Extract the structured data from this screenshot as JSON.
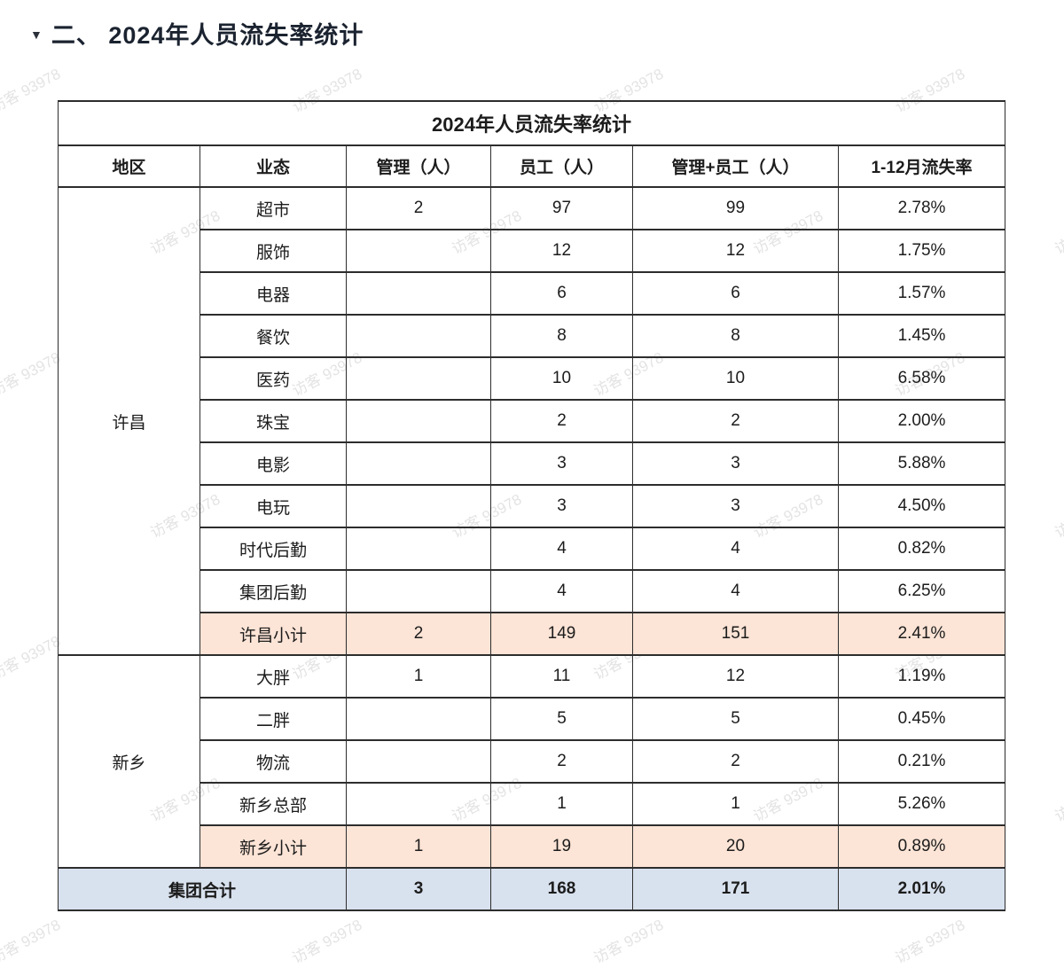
{
  "heading": {
    "collapse_icon": "▼",
    "text": "二、 2024年人员流失率统计"
  },
  "watermark": {
    "text": "访客 93978"
  },
  "table": {
    "title": "2024年人员流失率统计",
    "columns": [
      "地区",
      "业态",
      "管理（人）",
      "员工（人）",
      "管理+员工（人）",
      "1-12月流失率"
    ],
    "regions": [
      {
        "name": "许昌",
        "rows": [
          {
            "label": "超市",
            "mgmt": "2",
            "staff": "97",
            "total": "99",
            "rate": "2.78%"
          },
          {
            "label": "服饰",
            "mgmt": "",
            "staff": "12",
            "total": "12",
            "rate": "1.75%"
          },
          {
            "label": "电器",
            "mgmt": "",
            "staff": "6",
            "total": "6",
            "rate": "1.57%"
          },
          {
            "label": "餐饮",
            "mgmt": "",
            "staff": "8",
            "total": "8",
            "rate": "1.45%"
          },
          {
            "label": "医药",
            "mgmt": "",
            "staff": "10",
            "total": "10",
            "rate": "6.58%"
          },
          {
            "label": "珠宝",
            "mgmt": "",
            "staff": "2",
            "total": "2",
            "rate": "2.00%"
          },
          {
            "label": "电影",
            "mgmt": "",
            "staff": "3",
            "total": "3",
            "rate": "5.88%"
          },
          {
            "label": "电玩",
            "mgmt": "",
            "staff": "3",
            "total": "3",
            "rate": "4.50%"
          },
          {
            "label": "时代后勤",
            "mgmt": "",
            "staff": "4",
            "total": "4",
            "rate": "0.82%"
          },
          {
            "label": "集团后勤",
            "mgmt": "",
            "staff": "4",
            "total": "4",
            "rate": "6.25%"
          }
        ],
        "subtotal": {
          "label": "许昌小计",
          "mgmt": "2",
          "staff": "149",
          "total": "151",
          "rate": "2.41%"
        }
      },
      {
        "name": "新乡",
        "rows": [
          {
            "label": "大胖",
            "mgmt": "1",
            "staff": "11",
            "total": "12",
            "rate": "1.19%"
          },
          {
            "label": "二胖",
            "mgmt": "",
            "staff": "5",
            "total": "5",
            "rate": "0.45%"
          },
          {
            "label": "物流",
            "mgmt": "",
            "staff": "2",
            "total": "2",
            "rate": "0.21%"
          },
          {
            "label": "新乡总部",
            "mgmt": "",
            "staff": "1",
            "total": "1",
            "rate": "5.26%"
          }
        ],
        "subtotal": {
          "label": "新乡小计",
          "mgmt": "1",
          "staff": "19",
          "total": "20",
          "rate": "0.89%"
        }
      }
    ],
    "grand_total": {
      "label": "集团合计",
      "mgmt": "3",
      "staff": "168",
      "total": "171",
      "rate": "2.01%"
    },
    "colors": {
      "subtotal_bg": "#fce4d6",
      "grand_total_bg": "#d8e1ee"
    }
  }
}
